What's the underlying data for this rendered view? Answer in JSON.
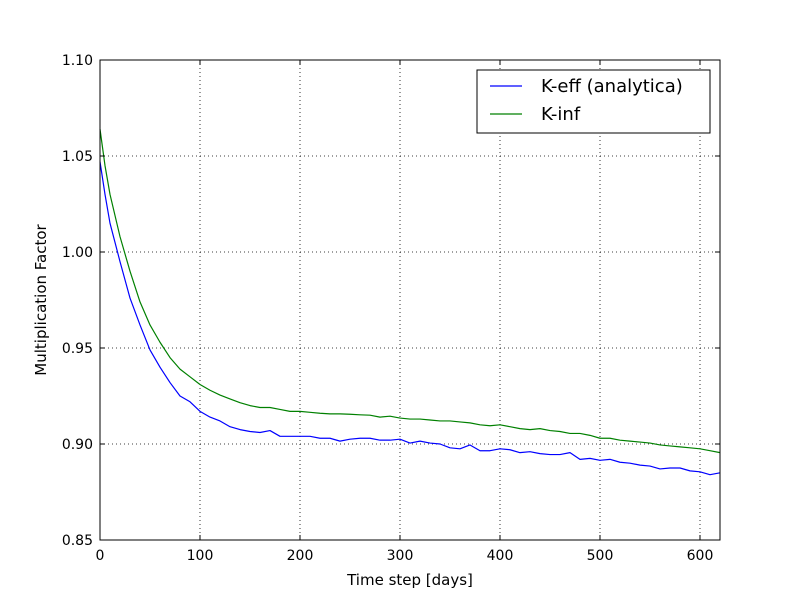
{
  "chart_data": {
    "type": "line",
    "title": "",
    "xlabel": "Time step [days]",
    "ylabel": "Multiplication Factor",
    "xlim": [
      0,
      620
    ],
    "ylim": [
      0.85,
      1.1
    ],
    "xticks": [
      0,
      100,
      200,
      300,
      400,
      500,
      600
    ],
    "xtick_labels": [
      "0",
      "100",
      "200",
      "300",
      "400",
      "500",
      "600"
    ],
    "yticks": [
      0.85,
      0.9,
      0.95,
      1.0,
      1.05,
      1.1
    ],
    "ytick_labels": [
      "0.85",
      "0.90",
      "0.95",
      "1.00",
      "1.05",
      "1.10"
    ],
    "grid": true,
    "legend_position": "top-right",
    "series": [
      {
        "name": "K-eff (analytica)",
        "color": "#0000ff",
        "x": [
          0,
          5,
          10,
          20,
          30,
          40,
          50,
          60,
          70,
          80,
          90,
          100,
          110,
          120,
          130,
          140,
          150,
          160,
          170,
          180,
          190,
          200,
          210,
          220,
          230,
          240,
          250,
          260,
          270,
          280,
          290,
          300,
          310,
          320,
          330,
          340,
          350,
          360,
          370,
          380,
          390,
          400,
          410,
          420,
          430,
          440,
          450,
          460,
          470,
          480,
          490,
          500,
          510,
          520,
          530,
          540,
          550,
          560,
          570,
          580,
          590,
          600,
          610,
          620
        ],
        "y": [
          1.047,
          1.03,
          1.015,
          0.995,
          0.976,
          0.962,
          0.949,
          0.94,
          0.932,
          0.925,
          0.922,
          0.917,
          0.914,
          0.912,
          0.909,
          0.9075,
          0.9065,
          0.906,
          0.907,
          0.904,
          0.904,
          0.904,
          0.904,
          0.903,
          0.903,
          0.9015,
          0.9025,
          0.903,
          0.903,
          0.902,
          0.902,
          0.9025,
          0.9005,
          0.9015,
          0.9005,
          0.9,
          0.898,
          0.8975,
          0.8995,
          0.8965,
          0.8965,
          0.8975,
          0.897,
          0.8955,
          0.896,
          0.895,
          0.8945,
          0.8945,
          0.8955,
          0.892,
          0.8925,
          0.8915,
          0.892,
          0.8905,
          0.89,
          0.889,
          0.8885,
          0.887,
          0.8875,
          0.8875,
          0.886,
          0.8855,
          0.884,
          0.885
        ]
      },
      {
        "name": "K-inf",
        "color": "#008000",
        "x": [
          0,
          5,
          10,
          20,
          30,
          40,
          50,
          60,
          70,
          80,
          90,
          100,
          110,
          120,
          130,
          140,
          150,
          160,
          170,
          180,
          190,
          200,
          210,
          220,
          230,
          240,
          250,
          260,
          270,
          280,
          290,
          300,
          310,
          320,
          330,
          340,
          350,
          360,
          370,
          380,
          390,
          400,
          410,
          420,
          430,
          440,
          450,
          460,
          470,
          480,
          490,
          500,
          510,
          520,
          530,
          540,
          550,
          560,
          570,
          580,
          590,
          600,
          610,
          620
        ],
        "y": [
          1.064,
          1.045,
          1.03,
          1.008,
          0.99,
          0.974,
          0.962,
          0.953,
          0.945,
          0.939,
          0.935,
          0.931,
          0.928,
          0.9255,
          0.9235,
          0.9215,
          0.92,
          0.919,
          0.919,
          0.918,
          0.917,
          0.917,
          0.9165,
          0.916,
          0.9157,
          0.9157,
          0.9155,
          0.9152,
          0.915,
          0.914,
          0.9145,
          0.9135,
          0.913,
          0.913,
          0.9125,
          0.912,
          0.912,
          0.9115,
          0.911,
          0.91,
          0.9095,
          0.91,
          0.909,
          0.908,
          0.9075,
          0.908,
          0.907,
          0.9065,
          0.9055,
          0.9055,
          0.9045,
          0.903,
          0.903,
          0.902,
          0.9015,
          0.901,
          0.9005,
          0.8995,
          0.899,
          0.8985,
          0.898,
          0.8975,
          0.8965,
          0.8955
        ]
      }
    ]
  }
}
